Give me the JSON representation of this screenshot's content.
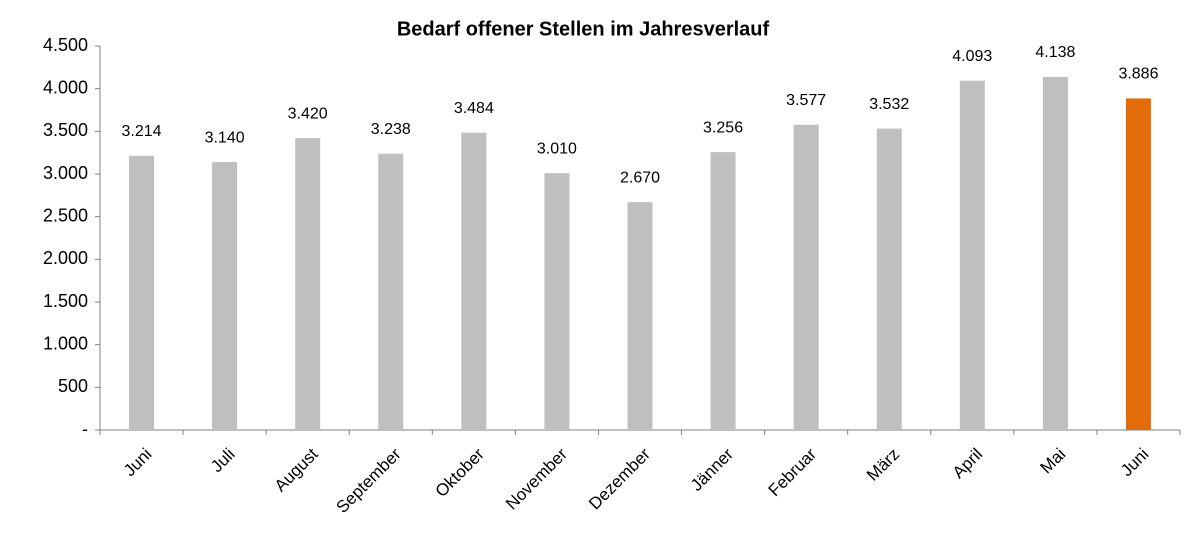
{
  "chart_data": {
    "type": "bar",
    "title": "Bedarf offener Stellen im Jahresverlauf",
    "categories": [
      "Juni",
      "Juli",
      "August",
      "September",
      "Oktober",
      "November",
      "Dezember",
      "Jänner",
      "Februar",
      "März",
      "April",
      "Mai",
      "Juni"
    ],
    "values": [
      3214,
      3140,
      3420,
      3238,
      3484,
      3010,
      2670,
      3256,
      3577,
      3532,
      4093,
      4138,
      3886
    ],
    "value_labels": [
      "3.214",
      "3.140",
      "3.420",
      "3.238",
      "3.484",
      "3.010",
      "2.670",
      "3.256",
      "3.577",
      "3.532",
      "4.093",
      "4.138",
      "3.886"
    ],
    "colors": [
      "#bfbfbf",
      "#bfbfbf",
      "#bfbfbf",
      "#bfbfbf",
      "#bfbfbf",
      "#bfbfbf",
      "#bfbfbf",
      "#bfbfbf",
      "#bfbfbf",
      "#bfbfbf",
      "#bfbfbf",
      "#bfbfbf",
      "#e36c0a"
    ],
    "ylim": [
      0,
      4500
    ],
    "yticks": [
      {
        "value": 0,
        "label": "-"
      },
      500,
      {
        "value": 1000,
        "label": "1.000"
      },
      {
        "value": 1500,
        "label": "1.500"
      },
      {
        "value": 2000,
        "label": "2.000"
      },
      {
        "value": 2500,
        "label": "2.500"
      },
      {
        "value": 3000,
        "label": "3.000"
      },
      {
        "value": 3500,
        "label": "3.500"
      },
      {
        "value": 4000,
        "label": "4.000"
      },
      {
        "value": 4500,
        "label": "4.500"
      }
    ],
    "grid": false
  }
}
